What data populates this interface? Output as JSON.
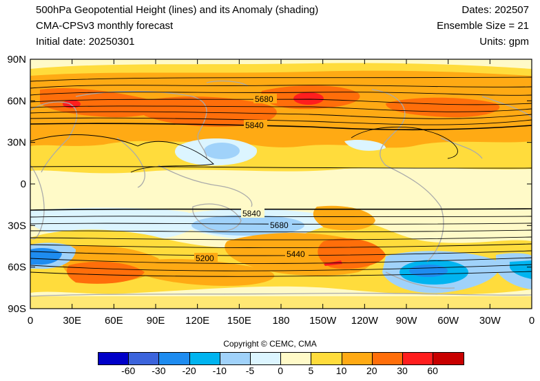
{
  "header": {
    "title_line1": "500hPa Geopotential Height (lines) and its Anomaly (shading)",
    "title_line2": "CMA-CPSv3 monthly forecast",
    "title_line3": "Initial date: 20250301",
    "dates": "Dates: 202507",
    "ensemble": "Ensemble Size = 21",
    "units": "Units: gpm"
  },
  "map": {
    "y_ticks": [
      "90N",
      "60N",
      "30N",
      "0",
      "30S",
      "60S",
      "90S"
    ],
    "x_ticks": [
      "0",
      "30E",
      "60E",
      "90E",
      "120E",
      "150E",
      "180",
      "150W",
      "120W",
      "90W",
      "60W",
      "30W",
      "0"
    ],
    "contour_labels": [
      "5680",
      "5840",
      "5840",
      "5680",
      "5200",
      "5440"
    ]
  },
  "colorbar": {
    "colors": [
      "#0000c8",
      "#3c64dc",
      "#1e8cf0",
      "#00b4f0",
      "#a0d2fa",
      "#dcf5ff",
      "#fffac8",
      "#ffdc3c",
      "#ffaa14",
      "#ff6e0a",
      "#ff1e1e",
      "#c80000"
    ],
    "labels": [
      "-60",
      "-30",
      "-20",
      "-10",
      "-5",
      "0",
      "5",
      "10",
      "20",
      "30",
      "60"
    ]
  },
  "copyright": "Copyright © CEMC, CMA"
}
